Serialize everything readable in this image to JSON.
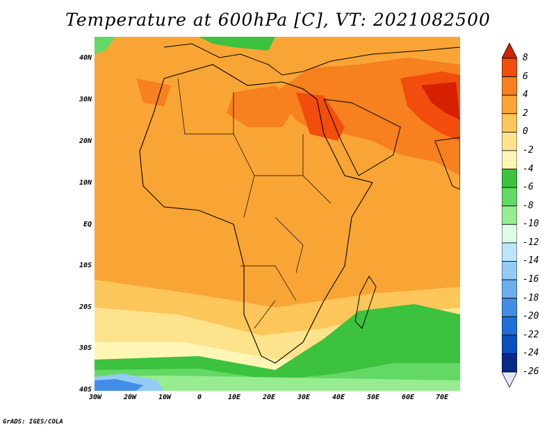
{
  "title": "Temperature at 600hPa [C], VT: 2021082500",
  "footer": "GrADS: IGES/COLA",
  "map": {
    "lat_labels": [
      "40N",
      "30N",
      "20N",
      "10N",
      "EQ",
      "10S",
      "20S",
      "30S",
      "40S"
    ],
    "lon_labels": [
      "30W",
      "20W",
      "10W",
      "0",
      "10E",
      "20E",
      "30E",
      "40E",
      "50E",
      "60E",
      "70E"
    ],
    "lat_range": [
      -40,
      45
    ],
    "lon_range": [
      -30,
      75
    ]
  },
  "colorbar": {
    "labels": [
      "8",
      "6",
      "4",
      "2",
      "0",
      "-2",
      "-4",
      "-6",
      "-8",
      "-10",
      "-12",
      "-14",
      "-16",
      "-18",
      "-20",
      "-22",
      "-24",
      "-26"
    ],
    "colors": [
      "#d62000",
      "#f24d0c",
      "#f7801f",
      "#f9a535",
      "#fcc65a",
      "#fde38c",
      "#fff6b6",
      "#3cc23e",
      "#64d864",
      "#98ec90",
      "#ddfbe8",
      "#bde5fa",
      "#94cbf5",
      "#6aaef0",
      "#418ee6",
      "#1e6ed8",
      "#0c4dbf",
      "#062b86",
      "#e6e6ff"
    ]
  }
}
